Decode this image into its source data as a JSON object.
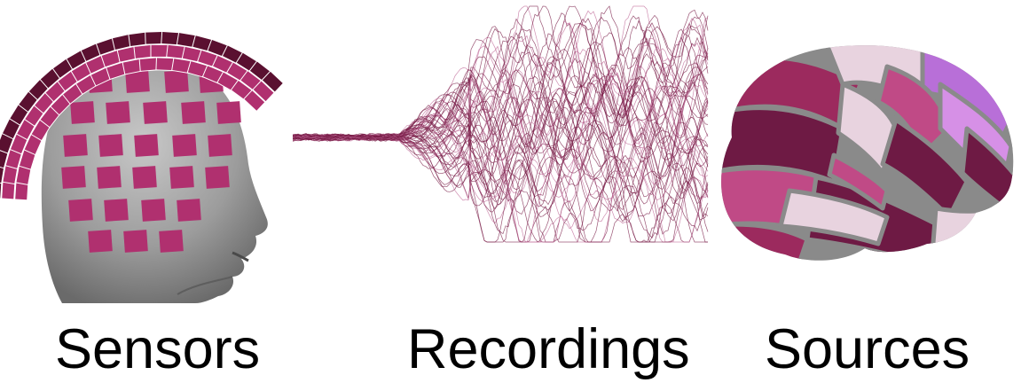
{
  "captions": {
    "sensors": "Sensors",
    "recordings": "Recordings",
    "sources": "Sources"
  },
  "colors": {
    "sensor": "#b0306f",
    "sensor_dark": "#5a1030",
    "trace": "#7a1d48",
    "head": "#9a9a9a",
    "brain_palette": [
      "#6e1a44",
      "#9c2a5e",
      "#c04a86",
      "#e8d3df",
      "#b86fd8",
      "#d690e6",
      "#8a8a8a"
    ]
  },
  "icons": {
    "head": "head-model-icon",
    "brain": "brain-surface-icon"
  }
}
